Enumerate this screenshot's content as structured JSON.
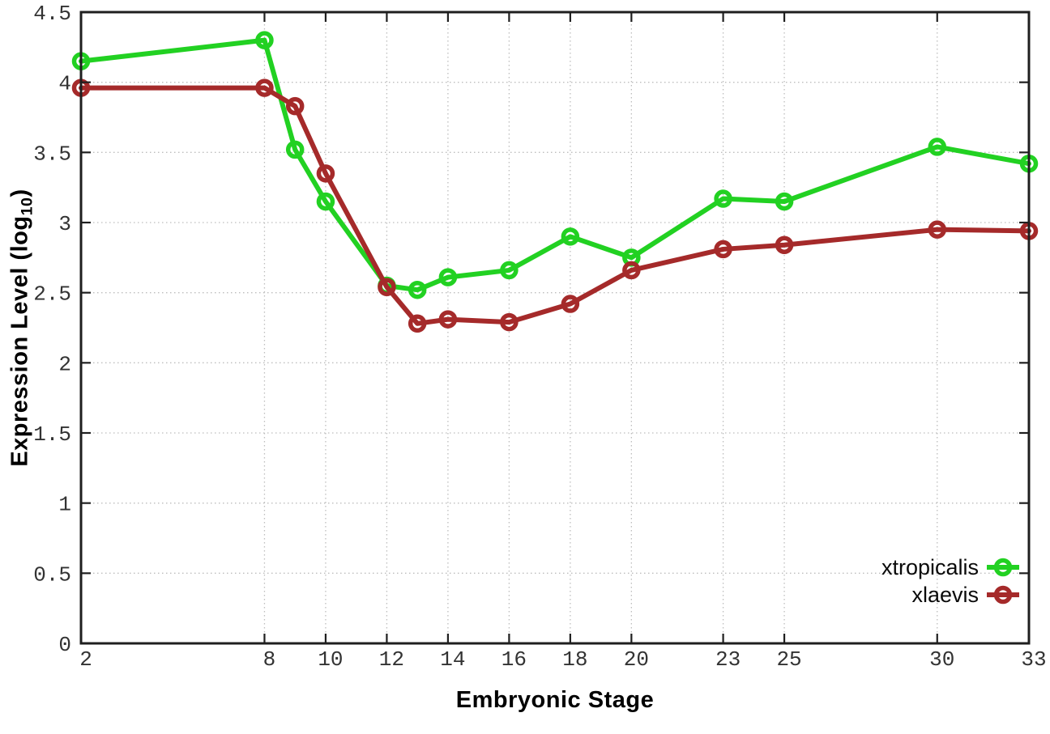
{
  "chart_data": {
    "type": "line",
    "xlabel": "Embryonic Stage",
    "ylabel": "Expression Level (log10)",
    "ylabel_parts": {
      "main": "Expression Level (log",
      "sub": "10",
      "end": ")"
    },
    "xlim": [
      2,
      33
    ],
    "ylim": [
      0,
      4.5
    ],
    "grid": true,
    "legend_position": "bottom-right-inside",
    "xticks": [
      2,
      8,
      10,
      12,
      14,
      16,
      18,
      20,
      23,
      25,
      30,
      33
    ],
    "xtick_labels": [
      "2",
      "8",
      "10",
      "12",
      "14",
      "16",
      "18",
      "20",
      "23",
      "25",
      "30",
      "33"
    ],
    "yticks": [
      0,
      0.5,
      1,
      1.5,
      2,
      2.5,
      3,
      3.5,
      4,
      4.5
    ],
    "ytick_labels": [
      "0",
      "0.5",
      "1",
      "1.5",
      "2",
      "2.5",
      "3",
      "3.5",
      "4",
      "4.5"
    ],
    "x": [
      2,
      8,
      9,
      10,
      12,
      13,
      14,
      16,
      18,
      20,
      23,
      25,
      30,
      33
    ],
    "series": [
      {
        "name": "xtropicalis",
        "color": "#22d122",
        "marker": "open-circle",
        "values": [
          4.15,
          4.3,
          3.52,
          3.15,
          2.55,
          2.52,
          2.61,
          2.66,
          2.9,
          2.75,
          3.17,
          3.15,
          3.54,
          3.42
        ]
      },
      {
        "name": "xlaevis",
        "color": "#a52a2a",
        "marker": "open-circle",
        "values": [
          3.96,
          3.96,
          3.83,
          3.35,
          2.54,
          2.28,
          2.31,
          2.29,
          2.42,
          2.66,
          2.81,
          2.84,
          2.95,
          2.94
        ]
      }
    ],
    "style": {
      "background": "#ffffff",
      "axis_color": "#1f1f1f",
      "grid_color": "#bdbdbd",
      "tick_label_color": "#333333"
    }
  }
}
